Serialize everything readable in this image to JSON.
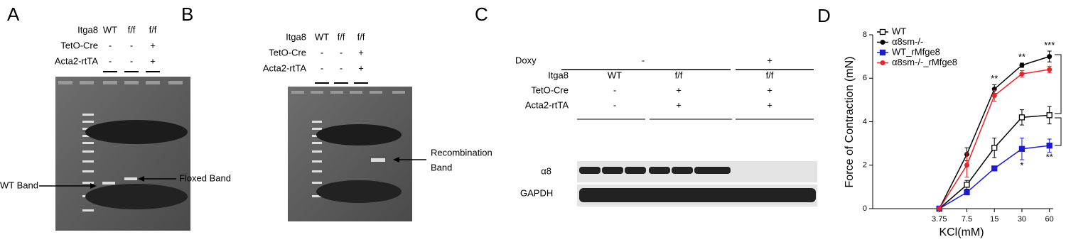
{
  "panels": {
    "a": {
      "letter": "A",
      "rows": [
        "Itga8",
        "TetO-Cre",
        "Acta2-rtTA"
      ],
      "cols": [
        [
          "WT",
          "-",
          "-"
        ],
        [
          "f/f",
          "-",
          "-"
        ],
        [
          "f/f",
          "+",
          "+"
        ]
      ],
      "wt_band": "WT Band",
      "floxed_band": "Floxed Band"
    },
    "b": {
      "letter": "B",
      "rows": [
        "Itga8",
        "TetO-Cre",
        "Acta2-rtTA"
      ],
      "cols": [
        [
          "WT",
          "-",
          "-"
        ],
        [
          "f/f",
          "-",
          "-"
        ],
        [
          "f/f",
          "+",
          "+"
        ]
      ],
      "band_label": [
        "Recombination",
        "Band"
      ]
    },
    "c": {
      "letter": "C",
      "doxy": "Doxy",
      "doxy_groups": [
        "-",
        "+"
      ],
      "rows": [
        "Itga8",
        "TetO-Cre",
        "Acta2-rtTA"
      ],
      "cols": [
        [
          "WT",
          "-",
          "-"
        ],
        [
          "f/f",
          "+",
          "+"
        ],
        [
          "f/f",
          "+",
          "+"
        ]
      ],
      "blots": [
        "α8",
        "GAPDH"
      ]
    },
    "d": {
      "letter": "D"
    }
  },
  "chart_data": {
    "type": "line",
    "x_label": "KCl(mM)",
    "y_label": "Force of Contraction (mN)",
    "x": [
      3.75,
      7.5,
      15,
      30,
      60
    ],
    "xscale": "log",
    "xlim": [
      0.7,
      66
    ],
    "xticks": [
      3.75,
      7.5,
      15,
      30,
      60
    ],
    "ylim": [
      0,
      8
    ],
    "yticks": [
      0,
      2,
      4,
      6,
      8
    ],
    "series": [
      {
        "name": "WT",
        "color": "#000000",
        "marker": "open-square",
        "values": [
          0,
          1.1,
          2.8,
          4.2,
          4.3
        ],
        "errors": [
          0,
          0.2,
          0.45,
          0.35,
          0.4
        ]
      },
      {
        "name": "α8sm-/-",
        "color": "#000000",
        "marker": "circle",
        "values": [
          0,
          2.5,
          5.5,
          6.6,
          7.0
        ],
        "errors": [
          0,
          0.3,
          0.2,
          0.1,
          0.25
        ]
      },
      {
        "name": "WT_rMfge8",
        "color": "#1a1ad0",
        "marker": "square",
        "values": [
          0,
          0.75,
          1.85,
          2.75,
          2.9
        ],
        "errors": [
          0,
          0.05,
          0.1,
          0.5,
          0.3
        ]
      },
      {
        "name": "α8sm-/-_rMfge8",
        "color": "#e8262a",
        "marker": "circle",
        "values": [
          0,
          2.0,
          5.2,
          6.2,
          6.4
        ],
        "errors": [
          0,
          0.55,
          0.25,
          0.15,
          0.15
        ]
      }
    ],
    "annotations": [
      {
        "text": "**",
        "x": 15,
        "y": 5.95
      },
      {
        "text": "**",
        "x": 30,
        "y": 6.95
      },
      {
        "text": "***",
        "x": 60,
        "y": 7.5
      },
      {
        "text": "*",
        "x": 30,
        "y": 1.95
      },
      {
        "text": "**",
        "x": 60,
        "y": 2.35
      }
    ]
  }
}
